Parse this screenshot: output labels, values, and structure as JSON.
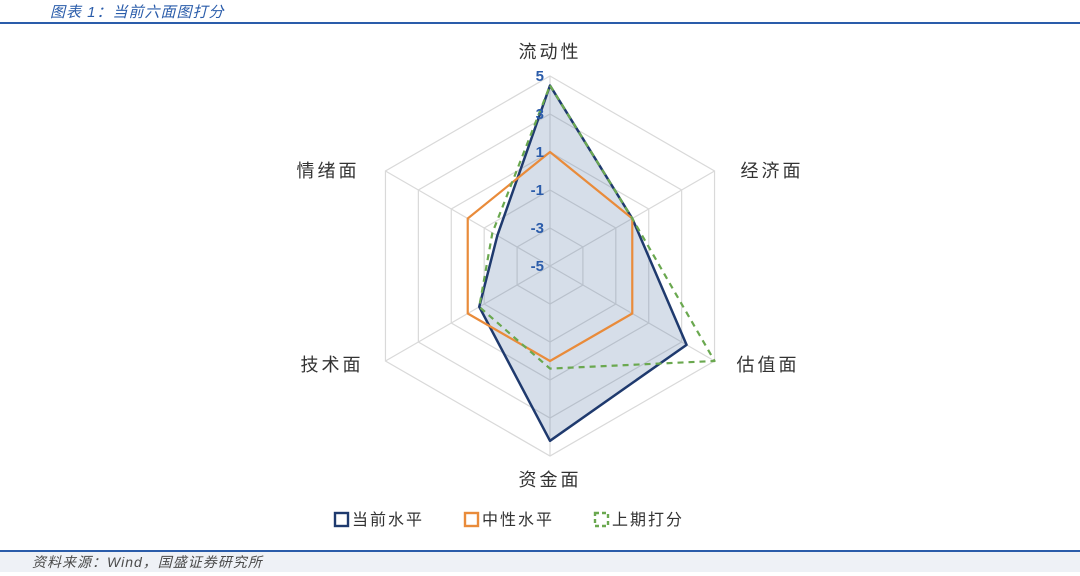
{
  "header": {
    "title": "图表 1：当前六面图打分"
  },
  "footer": {
    "source": "资料来源：Wind，国盛证券研究所"
  },
  "chart": {
    "type": "radar",
    "axes": [
      "流动性",
      "经济面",
      "估值面",
      "资金面",
      "技术面",
      "情绪面"
    ],
    "scale_min": -5,
    "scale_max": 5,
    "tick_values": [
      -5,
      -3,
      -1,
      1,
      3,
      5
    ],
    "grid_color": "#d9d9d9",
    "grid_stroke_width": 1.2,
    "axis_line_color": "#d9d9d9",
    "background_color": "#ffffff",
    "axis_label_color": "#333333",
    "axis_label_fontsize": 18,
    "tick_label_color": "#2b5caa",
    "tick_label_fontsize": 15,
    "series": [
      {
        "name": "当前水平",
        "values": [
          4.5,
          0,
          3.3,
          4.2,
          -0.7,
          -1.8
        ],
        "stroke": "#1f3a6e",
        "stroke_width": 2.5,
        "fill": "#5b7aa8",
        "fill_opacity": 0.25,
        "dash": "none"
      },
      {
        "name": "中性水平",
        "values": [
          1,
          0,
          0,
          0,
          0,
          0
        ],
        "stroke": "#e98b3a",
        "stroke_width": 2.2,
        "fill": "none",
        "fill_opacity": 0,
        "dash": "none"
      },
      {
        "name": "上期打分",
        "values": [
          4.5,
          0,
          5,
          0.4,
          -0.7,
          -1.5
        ],
        "stroke": "#6aa84f",
        "stroke_width": 2.2,
        "fill": "none",
        "fill_opacity": 0,
        "dash": "6,5"
      }
    ],
    "legend": {
      "position": "bottom",
      "swatch_size": 13,
      "font_size": 16,
      "items": [
        {
          "label": "当前水平",
          "swatch_stroke": "#1f3a6e",
          "swatch_fill": "none",
          "dash": "none"
        },
        {
          "label": "中性水平",
          "swatch_stroke": "#e98b3a",
          "swatch_fill": "none",
          "dash": "none"
        },
        {
          "label": "上期打分",
          "swatch_stroke": "#6aa84f",
          "swatch_fill": "none",
          "dash": "4,3"
        }
      ]
    }
  }
}
